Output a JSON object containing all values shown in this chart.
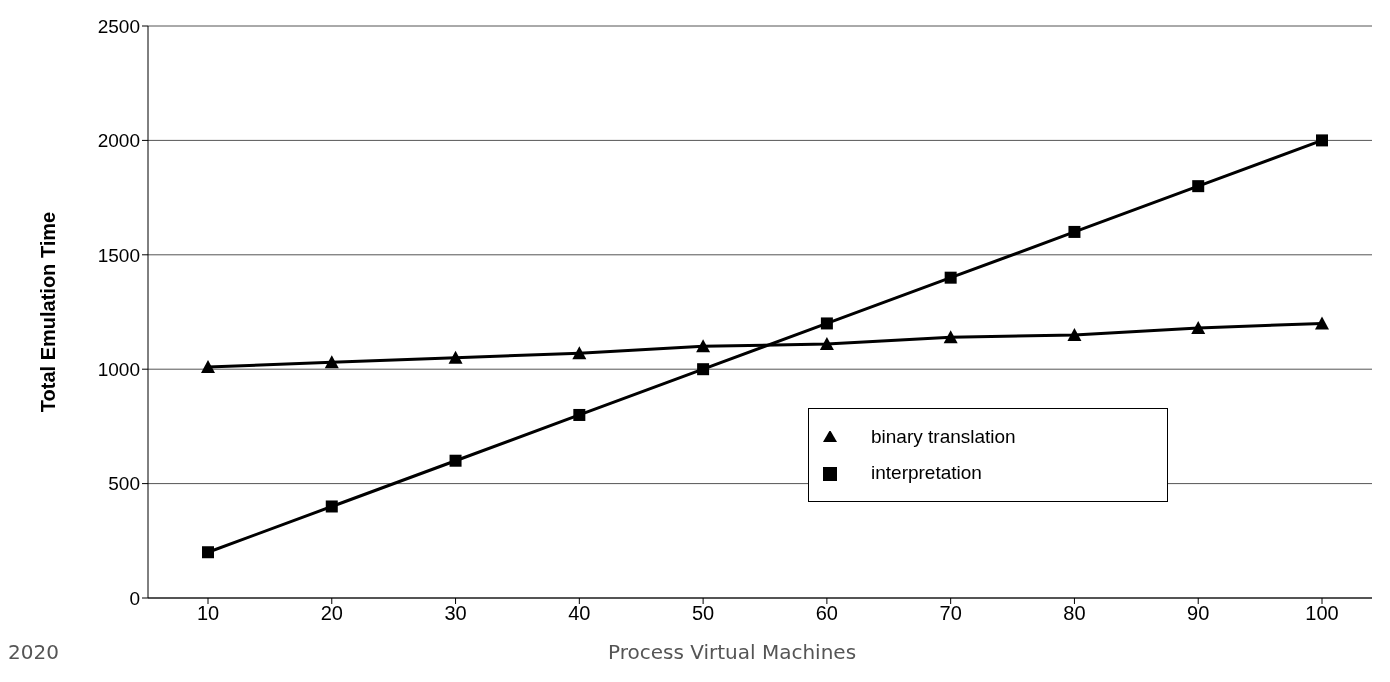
{
  "chart_data": {
    "type": "line",
    "ylabel": "Total Emulation Time",
    "categories": [
      "10",
      "20",
      "30",
      "40",
      "50",
      "60",
      "70",
      "80",
      "90",
      "100"
    ],
    "series": [
      {
        "name": "interpretation",
        "color": "#000000",
        "marker": "square",
        "values": [
          200,
          400,
          600,
          800,
          1000,
          1200,
          1400,
          1600,
          1800,
          2000
        ]
      },
      {
        "name": "binary translation",
        "color": "#000000",
        "marker": "triangle",
        "values": [
          1010,
          1030,
          1050,
          1070,
          1100,
          1110,
          1140,
          1150,
          1180,
          1200
        ]
      }
    ],
    "ylim": [
      0,
      2500
    ],
    "yticks": [
      0,
      500,
      1000,
      1500,
      2000,
      2500
    ],
    "grid": "y",
    "legend": "bottom right",
    "line_style": "solid",
    "annotations": [
      "2020",
      "Process Virtual Machines"
    ]
  }
}
